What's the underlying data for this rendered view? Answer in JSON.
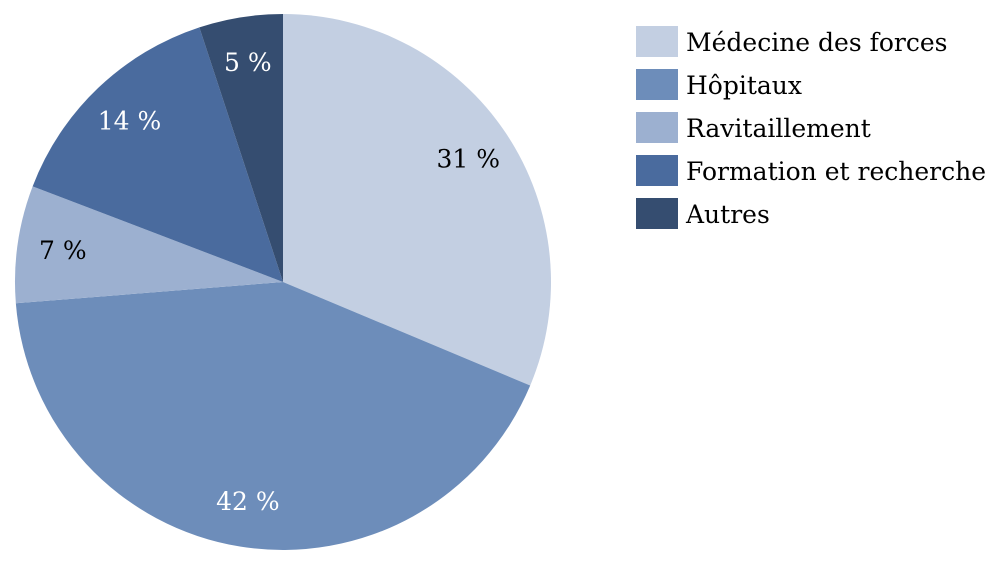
{
  "chart_data": {
    "type": "pie",
    "categories": [
      "Médecine des forces",
      "Hôpitaux",
      "Ravitaillement",
      "Formation et recherche",
      "Autres"
    ],
    "values": [
      31,
      42,
      7,
      14,
      5
    ],
    "labels": [
      "31 %",
      "42 %",
      "7 %",
      "14 %",
      "5 %"
    ],
    "colors": [
      "#c3cfe2",
      "#6d8dba",
      "#9cb0d0",
      "#4a6b9e",
      "#354d70"
    ],
    "label_colors": [
      "#000000",
      "#ffffff",
      "#000000",
      "#ffffff",
      "#ffffff"
    ],
    "start_angle_deg": 0,
    "direction": "clockwise",
    "legend_position": "top-right"
  }
}
